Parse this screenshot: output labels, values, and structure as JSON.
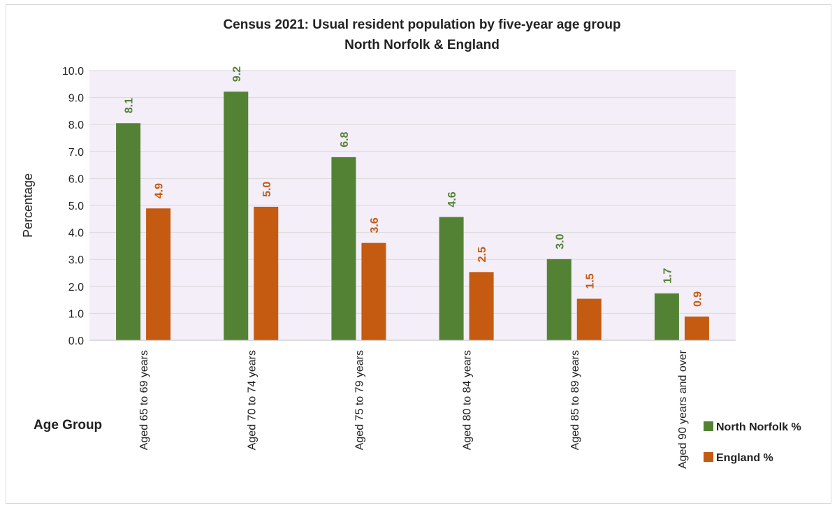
{
  "chart_data": {
    "type": "bar",
    "title": "Census 2021: Usual resident population by five-year age group",
    "subtitle": "North Norfolk & England",
    "xlabel": "Age Group",
    "ylabel": "Percentage",
    "ylim": [
      0,
      10
    ],
    "yticks": [
      "0.0",
      "1.0",
      "2.0",
      "3.0",
      "4.0",
      "5.0",
      "6.0",
      "7.0",
      "8.0",
      "9.0",
      "10.0"
    ],
    "grid": true,
    "legend_position": "right",
    "plot_background": "#f3eef8",
    "categories": [
      "Aged 65 to 69 years",
      "Aged 70 to 74 years",
      "Aged 75 to 79 years",
      "Aged 80 to 84 years",
      "Aged 85 to 89 years",
      "Aged 90 years and over"
    ],
    "series": [
      {
        "name": "North Norfolk %",
        "color": "#548235",
        "label_color": "#548235",
        "values": [
          8.05,
          9.22,
          6.79,
          4.57,
          3.01,
          1.74
        ],
        "labels": [
          "8.1",
          "9.2",
          "6.8",
          "4.6",
          "3.0",
          "1.7"
        ]
      },
      {
        "name": "England %",
        "color": "#c55a11",
        "label_color": "#c55a11",
        "values": [
          4.89,
          4.95,
          3.61,
          2.53,
          1.54,
          0.88
        ],
        "labels": [
          "4.9",
          "5.0",
          "3.6",
          "2.5",
          "1.5",
          "0.9"
        ]
      }
    ]
  }
}
